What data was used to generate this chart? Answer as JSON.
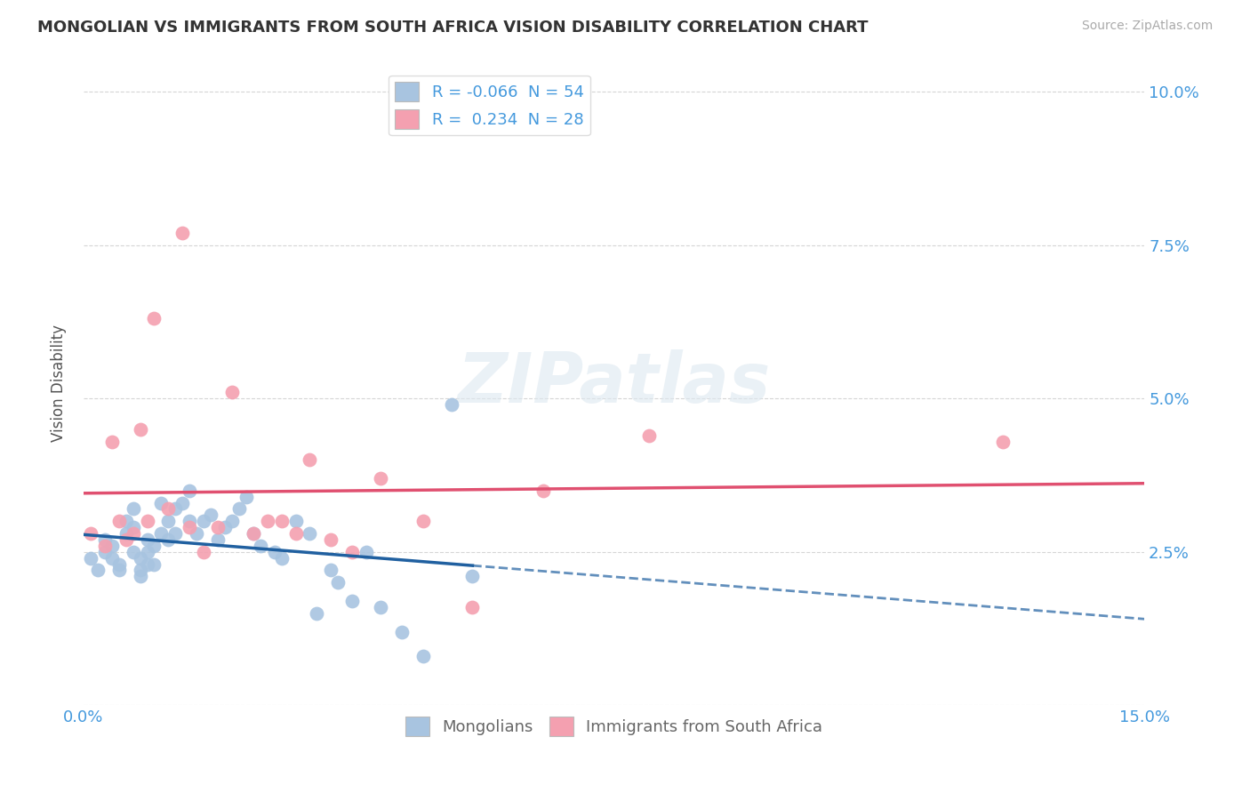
{
  "title": "MONGOLIAN VS IMMIGRANTS FROM SOUTH AFRICA VISION DISABILITY CORRELATION CHART",
  "source": "Source: ZipAtlas.com",
  "ylabel": "Vision Disability",
  "xlim": [
    0.0,
    0.15
  ],
  "ylim": [
    0.0,
    0.105
  ],
  "yticks": [
    0.0,
    0.025,
    0.05,
    0.075,
    0.1
  ],
  "ytick_labels": [
    "",
    "2.5%",
    "5.0%",
    "7.5%",
    "10.0%"
  ],
  "xticks": [
    0.0,
    0.15
  ],
  "xtick_labels": [
    "0.0%",
    "15.0%"
  ],
  "mongolian_color": "#a8c4e0",
  "immigrants_color": "#f4a0b0",
  "mongolian_line_color": "#2060a0",
  "immigrants_line_color": "#e05070",
  "legend_mongolian_label": "R = -0.066  N = 54",
  "legend_immigrants_label": "R =  0.234  N = 28",
  "legend_mongolians": "Mongolians",
  "legend_immigrants": "Immigrants from South Africa",
  "watermark": "ZIPatlas",
  "mongolian_x": [
    0.001,
    0.002,
    0.003,
    0.003,
    0.004,
    0.004,
    0.005,
    0.005,
    0.006,
    0.006,
    0.007,
    0.007,
    0.007,
    0.008,
    0.008,
    0.008,
    0.009,
    0.009,
    0.009,
    0.01,
    0.01,
    0.011,
    0.011,
    0.012,
    0.012,
    0.013,
    0.013,
    0.014,
    0.015,
    0.015,
    0.016,
    0.017,
    0.018,
    0.019,
    0.02,
    0.021,
    0.022,
    0.023,
    0.024,
    0.025,
    0.027,
    0.028,
    0.03,
    0.032,
    0.033,
    0.035,
    0.036,
    0.038,
    0.04,
    0.042,
    0.045,
    0.048,
    0.052,
    0.055
  ],
  "mongolian_y": [
    0.024,
    0.022,
    0.025,
    0.027,
    0.026,
    0.024,
    0.023,
    0.022,
    0.028,
    0.03,
    0.032,
    0.029,
    0.025,
    0.024,
    0.022,
    0.021,
    0.023,
    0.027,
    0.025,
    0.026,
    0.023,
    0.028,
    0.033,
    0.03,
    0.027,
    0.028,
    0.032,
    0.033,
    0.03,
    0.035,
    0.028,
    0.03,
    0.031,
    0.027,
    0.029,
    0.03,
    0.032,
    0.034,
    0.028,
    0.026,
    0.025,
    0.024,
    0.03,
    0.028,
    0.015,
    0.022,
    0.02,
    0.017,
    0.025,
    0.016,
    0.012,
    0.008,
    0.049,
    0.021
  ],
  "immigrants_x": [
    0.001,
    0.003,
    0.004,
    0.005,
    0.006,
    0.007,
    0.008,
    0.009,
    0.01,
    0.012,
    0.014,
    0.015,
    0.017,
    0.019,
    0.021,
    0.024,
    0.026,
    0.028,
    0.03,
    0.032,
    0.035,
    0.038,
    0.042,
    0.048,
    0.055,
    0.065,
    0.08,
    0.13
  ],
  "immigrants_y": [
    0.028,
    0.026,
    0.043,
    0.03,
    0.027,
    0.028,
    0.045,
    0.03,
    0.063,
    0.032,
    0.077,
    0.029,
    0.025,
    0.029,
    0.051,
    0.028,
    0.03,
    0.03,
    0.028,
    0.04,
    0.027,
    0.025,
    0.037,
    0.03,
    0.016,
    0.035,
    0.044,
    0.043
  ],
  "background_color": "#ffffff",
  "grid_color": "#cccccc",
  "tick_color": "#4499dd"
}
